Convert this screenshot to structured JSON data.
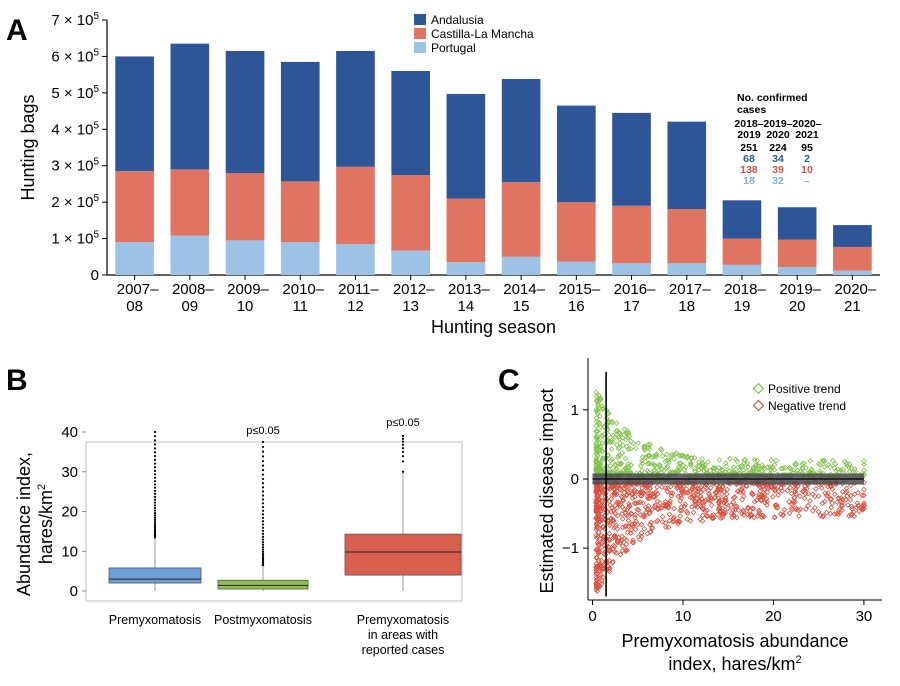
{
  "panels": {
    "a": "A",
    "b": "B",
    "c": "C"
  },
  "chart_data": [
    {
      "type": "bar",
      "stacked": true,
      "panel": "A",
      "ylabel": "Hunting bags",
      "xlabel": "Hunting season",
      "ylim": [
        0,
        700000
      ],
      "y_ticks": [
        {
          "value": 0,
          "base": "0",
          "exp": ""
        },
        {
          "value": 100000,
          "base": "1 × 10",
          "exp": "5"
        },
        {
          "value": 200000,
          "base": "2 × 10",
          "exp": "5"
        },
        {
          "value": 300000,
          "base": "3 × 10",
          "exp": "5"
        },
        {
          "value": 400000,
          "base": "4 × 10",
          "exp": "5"
        },
        {
          "value": 500000,
          "base": "5 × 10",
          "exp": "5"
        },
        {
          "value": 600000,
          "base": "6 × 10",
          "exp": "5"
        },
        {
          "value": 700000,
          "base": "7 × 10",
          "exp": "5"
        }
      ],
      "categories": [
        [
          "2007–",
          "08"
        ],
        [
          "2008–",
          "09"
        ],
        [
          "2009–",
          "10"
        ],
        [
          "2010–",
          "11"
        ],
        [
          "2011–",
          "12"
        ],
        [
          "2012–",
          "13"
        ],
        [
          "2013–",
          "14"
        ],
        [
          "2014–",
          "15"
        ],
        [
          "2015–",
          "16"
        ],
        [
          "2016–",
          "17"
        ],
        [
          "2017–",
          "18"
        ],
        [
          "2018–",
          "19"
        ],
        [
          "2019–",
          "20"
        ],
        [
          "2020–",
          "21"
        ]
      ],
      "series": [
        {
          "name": "Portugal",
          "color": "#9cc3e6",
          "values": [
            90000,
            108000,
            95000,
            90000,
            85000,
            67000,
            35000,
            50000,
            37000,
            32000,
            32000,
            28000,
            22000,
            12000
          ]
        },
        {
          "name": "Castilla-La Mancha",
          "color": "#de7461",
          "values": [
            195000,
            182000,
            185000,
            167000,
            212000,
            207000,
            175000,
            205000,
            163000,
            158000,
            149000,
            72000,
            75000,
            65000
          ]
        },
        {
          "name": "Andalusia",
          "color": "#2e5597",
          "values": [
            315000,
            345000,
            335000,
            328000,
            318000,
            286000,
            287000,
            283000,
            265000,
            255000,
            240000,
            105000,
            89000,
            60000
          ]
        }
      ],
      "legend_order": [
        "Andalusia",
        "Castilla-La Mancha",
        "Portugal"
      ],
      "legend_placement": "top-center",
      "cases_table": {
        "title": [
          "No. confirmed",
          "cases"
        ],
        "columns": [
          [
            "2018–",
            "2019"
          ],
          [
            "2019–",
            "2020"
          ],
          [
            "2020–",
            "2021"
          ]
        ],
        "rows": [
          {
            "color": "#000000",
            "values": [
              "251",
              "224",
              "95"
            ]
          },
          {
            "color": "#2e5597",
            "values": [
              "68",
              "34",
              "2"
            ]
          },
          {
            "color": "#d9503f",
            "values": [
              "138",
              "39",
              "10"
            ]
          },
          {
            "color": "#7fb2de",
            "values": [
              "18",
              "32",
              "–"
            ]
          }
        ]
      }
    },
    {
      "type": "boxplot",
      "panel": "B",
      "ylabel": [
        "Abundance index,",
        "hares/km",
        "2"
      ],
      "ylim": [
        0,
        40
      ],
      "y_ticks": [
        0,
        10,
        20,
        30,
        40
      ],
      "categories": [
        [
          "Premyxomatosis"
        ],
        [
          "Postmyxomatosis"
        ],
        [
          "Premyxomatosis",
          "in areas with",
          "reported cases"
        ]
      ],
      "boxes": [
        {
          "q1": 2.0,
          "median": 3.0,
          "q3": 5.8,
          "whisker_low": 0,
          "whisker_high": 13.5,
          "outlier_max": 40,
          "color": "#6d9ed6",
          "annotation": ""
        },
        {
          "q1": 0.5,
          "median": 1.4,
          "q3": 2.7,
          "whisker_low": 0,
          "whisker_high": 6.5,
          "outlier_max": 37.5,
          "color": "#8fc04a",
          "annotation": "p≤0.05"
        },
        {
          "q1": 4.0,
          "median": 9.8,
          "q3": 14.3,
          "whisker_low": 0,
          "whisker_high": 30,
          "outlier_max": 39,
          "color": "#d8604e",
          "annotation": "p≤0.05"
        }
      ]
    },
    {
      "type": "scatter",
      "panel": "C",
      "xlabel": [
        "Premyxomatosis abundance",
        "index, hares/km",
        "2"
      ],
      "ylabel": "Estimated disease impact",
      "xlim": [
        -0.5,
        32
      ],
      "ylim": [
        -1.75,
        1.75
      ],
      "x_ticks": [
        0,
        10,
        20,
        30
      ],
      "y_ticks": [
        -1,
        0,
        1
      ],
      "vertical_line_x": 1.5,
      "series": [
        {
          "name": "Positive trend",
          "color": "#7fc24a"
        },
        {
          "name": "Negative trend",
          "color": "#d9503f"
        }
      ],
      "legend_placement": "top-right"
    }
  ]
}
